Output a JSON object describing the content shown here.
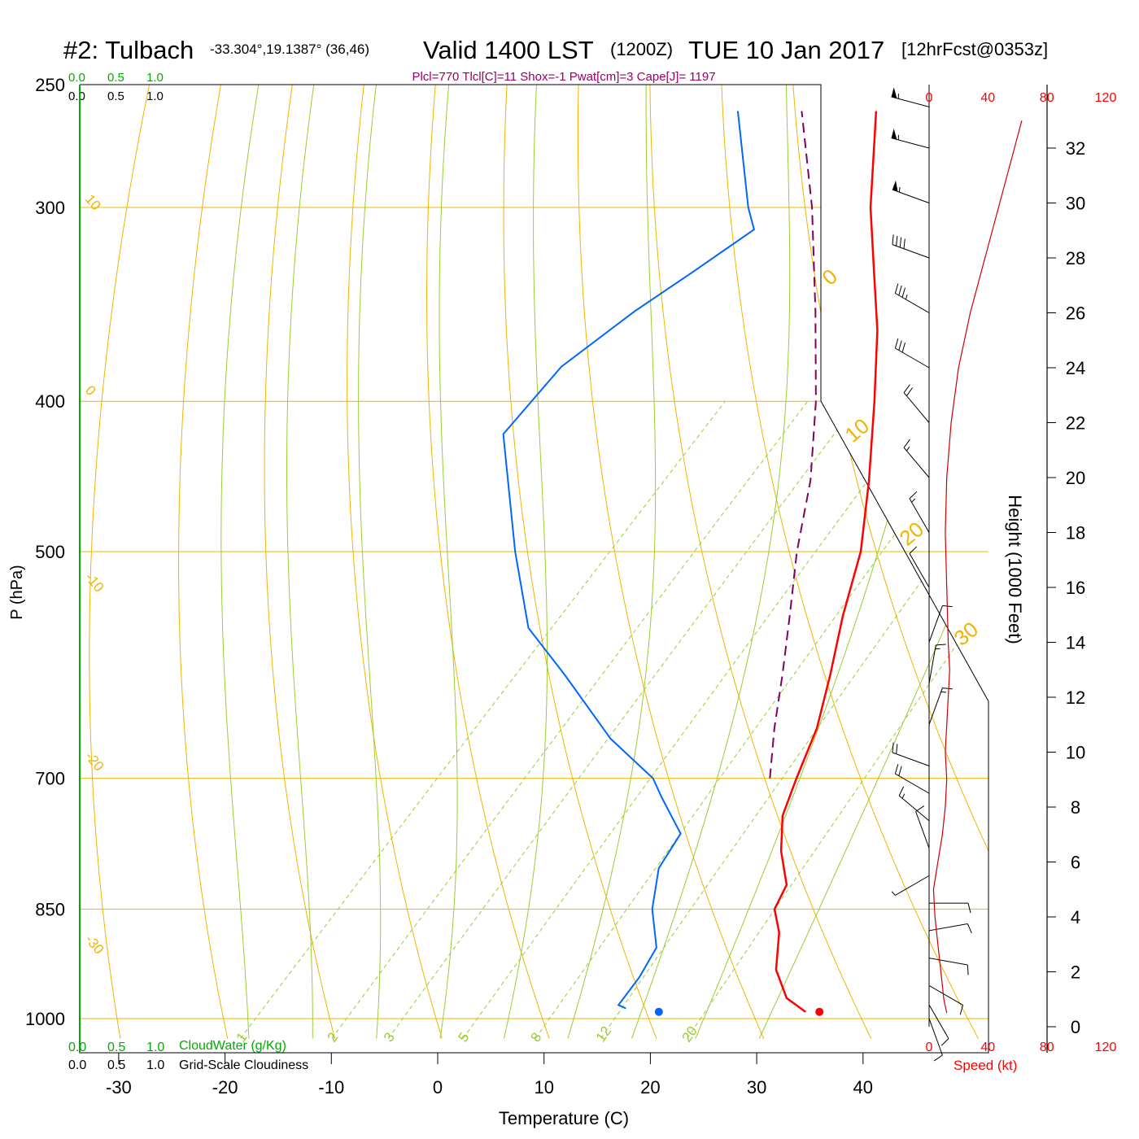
{
  "header": {
    "title_main": "#2: Tulbach",
    "title_coords": "-33.304°,19.1387° (36,46)",
    "title_valid": "Valid 1400 LST",
    "title_utc": "(1200Z)",
    "title_date": "TUE 10 Jan 2017",
    "title_fcst": "[12hrFcst@0353z]",
    "params": "Plcl=770 Tlcl[C]=11 Shox=-1 Pwat[cm]=3 Cape[J]= 1197"
  },
  "top_scale_green": [
    "0.0",
    "0.5",
    "1.0"
  ],
  "top_scale_black": [
    "0.0",
    "0.5",
    "1.0"
  ],
  "bottom_scale_green": [
    "0.0",
    "0.5",
    "1.0"
  ],
  "bottom_scale_black": [
    "0.0",
    "0.5",
    "1.0"
  ],
  "cloudwater_label": "CloudWater (g/Kg)",
  "cloudiness_label": "Grid-Scale Cloudiness",
  "speed_label": "Speed (kt)",
  "speed_ticks": [
    "0",
    "40",
    "80",
    "120"
  ],
  "colors": {
    "isobar": "#f0b400",
    "dry_adiabat": "#f0b400",
    "moist_adiabat": "#99cc33",
    "mixing_ratio": "#99cc33",
    "temperature": "#ff0000",
    "dewpoint": "#0066ff",
    "parcel": "#800060",
    "cloud": "#00aa00",
    "speed": "#ff0000",
    "params": "#990066"
  },
  "chart_data": {
    "type": "skew-t",
    "xlabel": "Temperature (C)",
    "ylabel": "P (hPa)",
    "height_label": "Height (1000 Feet)",
    "x_ticks": [
      "-30",
      "-20",
      "-10",
      "0",
      "10",
      "20",
      "30",
      "40"
    ],
    "x_tick_values": [
      -30,
      -20,
      -10,
      0,
      10,
      20,
      30,
      40
    ],
    "xlim": [
      -33,
      47
    ],
    "pressure_range": [
      1030,
      250
    ],
    "p_ticks": [
      "250",
      "300",
      "400",
      "500",
      "700",
      "850",
      "1000"
    ],
    "p_tick_values": [
      250,
      300,
      400,
      500,
      700,
      850,
      1000
    ],
    "height_ticks": [
      "0",
      "2",
      "4",
      "6",
      "8",
      "10",
      "12",
      "14",
      "16",
      "18",
      "20",
      "22",
      "24",
      "26",
      "28",
      "30",
      "32"
    ],
    "height_tick_values": [
      0,
      2,
      4,
      6,
      8,
      10,
      12,
      14,
      16,
      18,
      20,
      22,
      24,
      26,
      28,
      30,
      32
    ],
    "dry_adiabat_labels": [
      "10",
      "0",
      "-10",
      "-20",
      "-30"
    ],
    "right_adiabat_labels": [
      "0",
      "10",
      "20",
      "30"
    ],
    "mixing_ratio_labels": [
      "1",
      "2",
      "3",
      "5",
      "8",
      "12",
      "20"
    ],
    "mixing_ratio_values": [
      1,
      2,
      3,
      5,
      8,
      12,
      20
    ],
    "temperature": [
      {
        "p": 990,
        "t": 34.0
      },
      {
        "p": 970,
        "t": 31.0
      },
      {
        "p": 930,
        "t": 27.5
      },
      {
        "p": 880,
        "t": 24.5
      },
      {
        "p": 850,
        "t": 22.0
      },
      {
        "p": 820,
        "t": 21.0
      },
      {
        "p": 780,
        "t": 17.5
      },
      {
        "p": 740,
        "t": 14.5
      },
      {
        "p": 700,
        "t": 12.5
      },
      {
        "p": 650,
        "t": 10.0
      },
      {
        "p": 600,
        "t": 6.5
      },
      {
        "p": 550,
        "t": 2.5
      },
      {
        "p": 500,
        "t": -1.5
      },
      {
        "p": 450,
        "t": -7.0
      },
      {
        "p": 400,
        "t": -13.5
      },
      {
        "p": 360,
        "t": -19.5
      },
      {
        "p": 330,
        "t": -25.0
      },
      {
        "p": 300,
        "t": -31.0
      },
      {
        "p": 260,
        "t": -39.0
      }
    ],
    "dewpoint": [
      {
        "p": 985,
        "t": 16.8
      },
      {
        "p": 980,
        "t": 15.8
      },
      {
        "p": 940,
        "t": 15.3
      },
      {
        "p": 900,
        "t": 14.3
      },
      {
        "p": 850,
        "t": 10.5
      },
      {
        "p": 800,
        "t": 7.5
      },
      {
        "p": 760,
        "t": 6.5
      },
      {
        "p": 720,
        "t": 1.5
      },
      {
        "p": 700,
        "t": -1.0
      },
      {
        "p": 660,
        "t": -8.5
      },
      {
        "p": 600,
        "t": -18.5
      },
      {
        "p": 560,
        "t": -26.0
      },
      {
        "p": 500,
        "t": -34.0
      },
      {
        "p": 460,
        "t": -39.5
      },
      {
        "p": 420,
        "t": -45.5
      },
      {
        "p": 380,
        "t": -46.0
      },
      {
        "p": 350,
        "t": -44.0
      },
      {
        "p": 330,
        "t": -42.0
      },
      {
        "p": 310,
        "t": -40.0
      },
      {
        "p": 300,
        "t": -42.5
      },
      {
        "p": 260,
        "t": -52.0
      }
    ],
    "parcel": [
      {
        "p": 700,
        "t": 10.0
      },
      {
        "p": 650,
        "t": 6.0
      },
      {
        "p": 600,
        "t": 2.0
      },
      {
        "p": 550,
        "t": -2.5
      },
      {
        "p": 500,
        "t": -7.5
      },
      {
        "p": 450,
        "t": -12.5
      },
      {
        "p": 400,
        "t": -19.0
      },
      {
        "p": 350,
        "t": -27.0
      },
      {
        "p": 300,
        "t": -36.5
      },
      {
        "p": 260,
        "t": -46.0
      }
    ],
    "surface_temperature": {
      "p": 990,
      "t": 35.3
    },
    "surface_dewpoint": {
      "p": 990,
      "t": 20.2
    },
    "wind_speed_profile": [
      {
        "h": 0.5,
        "s": 12
      },
      {
        "h": 1.0,
        "s": 10
      },
      {
        "h": 2.0,
        "s": 8
      },
      {
        "h": 3.0,
        "s": 6
      },
      {
        "h": 4.0,
        "s": 4
      },
      {
        "h": 5.0,
        "s": 3
      },
      {
        "h": 6.0,
        "s": 6
      },
      {
        "h": 7.0,
        "s": 9
      },
      {
        "h": 8.0,
        "s": 11
      },
      {
        "h": 9.0,
        "s": 12
      },
      {
        "h": 10.0,
        "s": 11
      },
      {
        "h": 11.0,
        "s": 12
      },
      {
        "h": 12.0,
        "s": 13
      },
      {
        "h": 13.0,
        "s": 14
      },
      {
        "h": 14.0,
        "s": 13
      },
      {
        "h": 16.0,
        "s": 12
      },
      {
        "h": 18.0,
        "s": 11
      },
      {
        "h": 20.0,
        "s": 12
      },
      {
        "h": 22.0,
        "s": 15
      },
      {
        "h": 24.0,
        "s": 20
      },
      {
        "h": 26.0,
        "s": 28
      },
      {
        "h": 28.0,
        "s": 38
      },
      {
        "h": 30.0,
        "s": 48
      },
      {
        "h": 32.0,
        "s": 58
      },
      {
        "h": 33.0,
        "s": 63
      }
    ],
    "wind_barbs": [
      {
        "h": 0.3,
        "dir": 160,
        "spd": 10
      },
      {
        "h": 0.8,
        "dir": 150,
        "spd": 10
      },
      {
        "h": 1.5,
        "dir": 120,
        "spd": 10
      },
      {
        "h": 2.5,
        "dir": 100,
        "spd": 10
      },
      {
        "h": 3.5,
        "dir": 80,
        "spd": 10
      },
      {
        "h": 4.5,
        "dir": 90,
        "spd": 10
      },
      {
        "h": 5.5,
        "dir": 240,
        "spd": 5
      },
      {
        "h": 6.5,
        "dir": 340,
        "spd": 10
      },
      {
        "h": 7.5,
        "dir": 310,
        "spd": 15
      },
      {
        "h": 8.5,
        "dir": 300,
        "spd": 20
      },
      {
        "h": 9.5,
        "dir": 290,
        "spd": 20
      },
      {
        "h": 11.0,
        "dir": 20,
        "spd": 15
      },
      {
        "h": 12.5,
        "dir": 10,
        "spd": 15
      },
      {
        "h": 14.0,
        "dir": 20,
        "spd": 10
      },
      {
        "h": 16.0,
        "dir": 330,
        "spd": 10
      },
      {
        "h": 18.0,
        "dir": 330,
        "spd": 15
      },
      {
        "h": 20.0,
        "dir": 320,
        "spd": 15
      },
      {
        "h": 22.0,
        "dir": 320,
        "spd": 20
      },
      {
        "h": 24.0,
        "dir": 300,
        "spd": 30
      },
      {
        "h": 26.0,
        "dir": 300,
        "spd": 35
      },
      {
        "h": 28.0,
        "dir": 290,
        "spd": 40
      },
      {
        "h": 30.0,
        "dir": 290,
        "spd": 55
      },
      {
        "h": 32.0,
        "dir": 285,
        "spd": 55
      },
      {
        "h": 33.5,
        "dir": 285,
        "spd": 55
      }
    ]
  }
}
